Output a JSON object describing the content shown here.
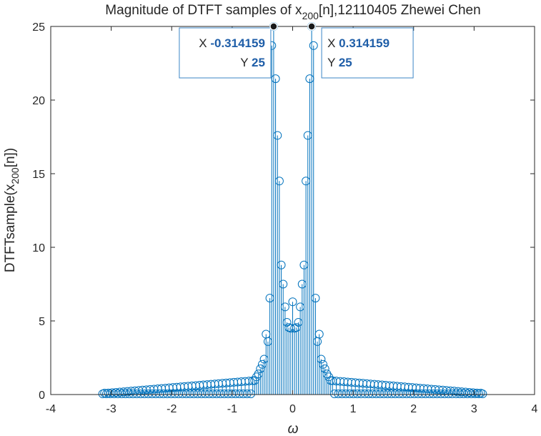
{
  "chart_data": {
    "type": "stem",
    "title": {
      "prefix": "Magnitude of DTFT samples of x",
      "subscript": "200",
      "suffix": "[n],12110405 Zhewei Chen"
    },
    "xlabel": "ω",
    "ylabel": {
      "prefix": "DTFTsample(x",
      "subscript": "200",
      "suffix": "[n])"
    },
    "xlim": [
      -4,
      4
    ],
    "ylim": [
      0,
      25
    ],
    "xticks": [
      "-4",
      "-3",
      "-2",
      "-1",
      "0",
      "1",
      "2",
      "3",
      "4"
    ],
    "yticks": [
      "0",
      "5",
      "10",
      "15",
      "20",
      "25"
    ],
    "grid": false,
    "marker_color": "#0072bd",
    "x_step": 0.0314159,
    "n_points": 201,
    "y_center": [
      0.88,
      0.84,
      0.78,
      0.72,
      0.64,
      0.55,
      0.44,
      0.32,
      0.2,
      0.14,
      0.0
    ],
    "side_values": [
      {
        "k": 2,
        "y": 4.55
      },
      {
        "k": 3,
        "y": 4.9
      },
      {
        "k": 4,
        "y": 5.95
      },
      {
        "k": 5,
        "y": 7.5
      },
      {
        "k": 6,
        "y": 8.8
      },
      {
        "k": 7,
        "y": 14.5
      },
      {
        "k": 8,
        "y": 17.6
      },
      {
        "k": 9,
        "y": 21.45
      },
      {
        "k": 10,
        "y": 25
      },
      {
        "k": 11,
        "y": 23.7
      },
      {
        "k": 12,
        "y": 6.55
      },
      {
        "k": 13,
        "y": 3.6
      },
      {
        "k": 14,
        "y": 4.1
      },
      {
        "k": 15,
        "y": 2.4
      },
      {
        "k": 16,
        "y": 2.05
      },
      {
        "k": 17,
        "y": 1.75
      },
      {
        "k": 18,
        "y": 1.4
      },
      {
        "k": 19,
        "y": 1.2
      },
      {
        "k": 20,
        "y": 0.95
      }
    ],
    "datatips": [
      {
        "x_label": "X",
        "x_value": "-0.314159",
        "y_label": "Y",
        "y_value": "25",
        "x": -0.314159,
        "y": 25
      },
      {
        "x_label": "X",
        "x_value": "0.314159",
        "y_label": "Y",
        "y_value": "25",
        "x": 0.314159,
        "y": 25
      }
    ]
  }
}
